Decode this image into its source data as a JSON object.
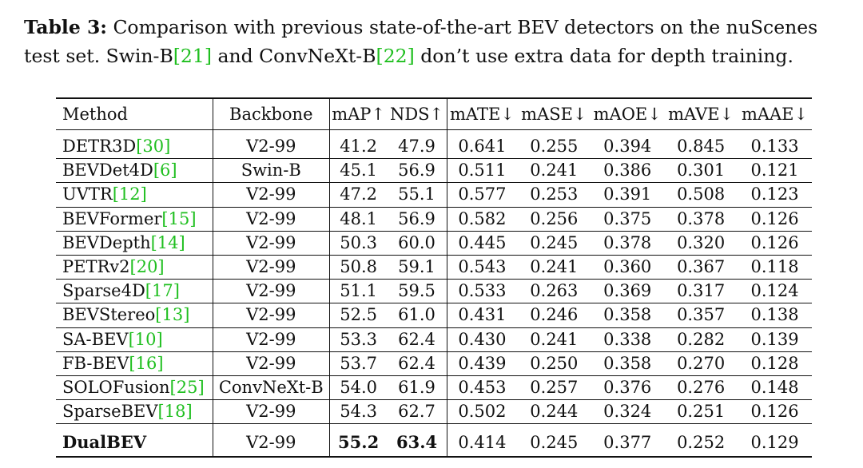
{
  "caption": {
    "label": "Table 3:",
    "text_1": " Comparison with previous state-of-the-art BEV detectors on the nuScenes test set. Swin-B",
    "cite_a": "[21]",
    "text_2": " and ConvNeXt-B",
    "cite_b": "[22]",
    "text_3": " don’t use extra data for depth training."
  },
  "table": {
    "headers": {
      "method": "Method",
      "backbone": "Backbone",
      "map": "mAP↑",
      "nds": "NDS↑",
      "mate": "mATE↓",
      "mase": "mASE↓",
      "maoe": "mAOE↓",
      "mave": "mAVE↓",
      "maae": "mAAE↓"
    },
    "rows": [
      {
        "method": "DETR3D",
        "cite": "[30]",
        "backbone": "V2-99",
        "map": "41.2",
        "nds": "47.9",
        "mate": "0.641",
        "mase": "0.255",
        "maoe": "0.394",
        "mave": "0.845",
        "maae": "0.133"
      },
      {
        "method": "BEVDet4D",
        "cite": "[6]",
        "backbone": "Swin-B",
        "map": "45.1",
        "nds": "56.9",
        "mate": "0.511",
        "mase": "0.241",
        "maoe": "0.386",
        "mave": "0.301",
        "maae": "0.121"
      },
      {
        "method": "UVTR",
        "cite": "[12]",
        "backbone": "V2-99",
        "map": "47.2",
        "nds": "55.1",
        "mate": "0.577",
        "mase": "0.253",
        "maoe": "0.391",
        "mave": "0.508",
        "maae": "0.123"
      },
      {
        "method": "BEVFormer",
        "cite": "[15]",
        "backbone": "V2-99",
        "map": "48.1",
        "nds": "56.9",
        "mate": "0.582",
        "mase": "0.256",
        "maoe": "0.375",
        "mave": "0.378",
        "maae": "0.126"
      },
      {
        "method": "BEVDepth",
        "cite": "[14]",
        "backbone": "V2-99",
        "map": "50.3",
        "nds": "60.0",
        "mate": "0.445",
        "mase": "0.245",
        "maoe": "0.378",
        "mave": "0.320",
        "maae": "0.126"
      },
      {
        "method": "PETRv2",
        "cite": "[20]",
        "backbone": "V2-99",
        "map": "50.8",
        "nds": "59.1",
        "mate": "0.543",
        "mase": "0.241",
        "maoe": "0.360",
        "mave": "0.367",
        "maae": "0.118"
      },
      {
        "method": "Sparse4D",
        "cite": "[17]",
        "backbone": "V2-99",
        "map": "51.1",
        "nds": "59.5",
        "mate": "0.533",
        "mase": "0.263",
        "maoe": "0.369",
        "mave": "0.317",
        "maae": "0.124"
      },
      {
        "method": "BEVStereo",
        "cite": "[13]",
        "backbone": "V2-99",
        "map": "52.5",
        "nds": "61.0",
        "mate": "0.431",
        "mase": "0.246",
        "maoe": "0.358",
        "mave": "0.357",
        "maae": "0.138"
      },
      {
        "method": "SA-BEV",
        "cite": "[10]",
        "backbone": "V2-99",
        "map": "53.3",
        "nds": "62.4",
        "mate": "0.430",
        "mase": "0.241",
        "maoe": "0.338",
        "mave": "0.282",
        "maae": "0.139"
      },
      {
        "method": "FB-BEV",
        "cite": "[16]",
        "backbone": "V2-99",
        "map": "53.7",
        "nds": "62.4",
        "mate": "0.439",
        "mase": "0.250",
        "maoe": "0.358",
        "mave": "0.270",
        "maae": "0.128"
      },
      {
        "method": "SOLOFusion",
        "cite": "[25]",
        "backbone": "ConvNeXt-B",
        "map": "54.0",
        "nds": "61.9",
        "mate": "0.453",
        "mase": "0.257",
        "maoe": "0.376",
        "mave": "0.276",
        "maae": "0.148"
      },
      {
        "method": "SparseBEV",
        "cite": "[18]",
        "backbone": "V2-99",
        "map": "54.3",
        "nds": "62.7",
        "mate": "0.502",
        "mase": "0.244",
        "maoe": "0.324",
        "mave": "0.251",
        "maae": "0.126"
      }
    ],
    "ours": {
      "method": "DualBEV",
      "backbone": "V2-99",
      "map": "55.2",
      "nds": "63.4",
      "mate": "0.414",
      "mase": "0.245",
      "maoe": "0.377",
      "mave": "0.252",
      "maae": "0.129"
    }
  }
}
